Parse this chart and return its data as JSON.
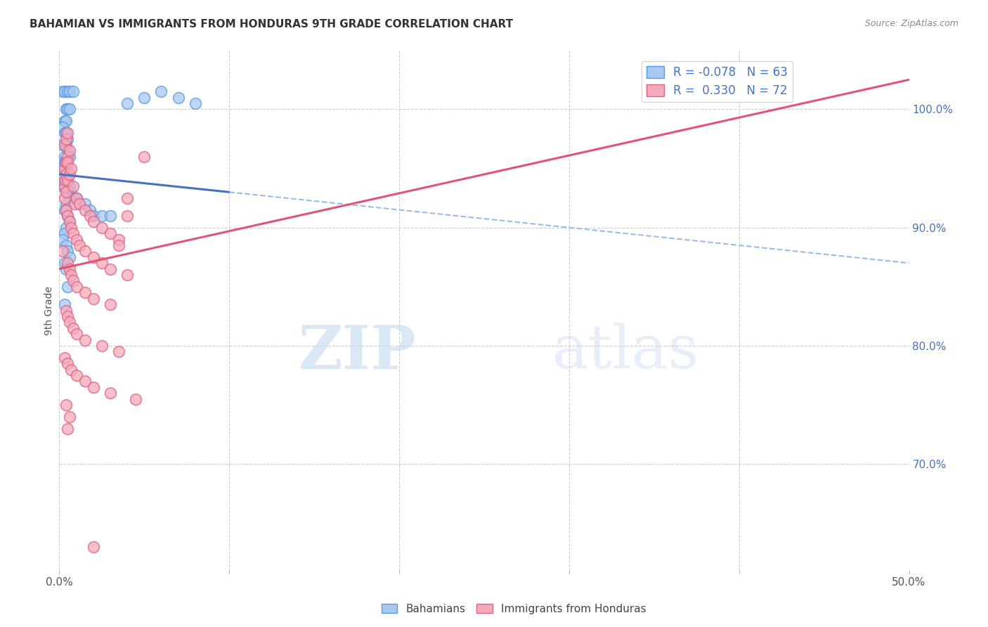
{
  "title": "BAHAMIAN VS IMMIGRANTS FROM HONDURAS 9TH GRADE CORRELATION CHART",
  "source": "Source: ZipAtlas.com",
  "ylabel": "9th Grade",
  "right_yticks": [
    70.0,
    80.0,
    90.0,
    100.0
  ],
  "xlim": [
    0.0,
    50.0
  ],
  "ylim": [
    61.0,
    105.0
  ],
  "legend_blue_r": "R = -0.078",
  "legend_blue_n": "N = 63",
  "legend_pink_r": "R =  0.330",
  "legend_pink_n": "N = 72",
  "blue_fill": "#A8C8F0",
  "blue_edge": "#5599DD",
  "pink_fill": "#F5AABB",
  "pink_edge": "#E06080",
  "blue_line_color": "#4472C4",
  "pink_line_color": "#E05575",
  "dashed_line_color": "#99BBE8",
  "title_color": "#333333",
  "source_color": "#888888",
  "right_axis_color": "#4472C4",
  "grid_color": "#CCCCCC",
  "background_color": "#FFFFFF",
  "blue_line_x0": 0.0,
  "blue_line_y0": 94.5,
  "blue_line_x1": 10.0,
  "blue_line_y1": 93.0,
  "blue_dash_x0": 10.0,
  "blue_dash_y0": 93.0,
  "blue_dash_x1": 50.0,
  "blue_dash_y1": 87.0,
  "pink_line_x0": 0.0,
  "pink_line_y0": 86.5,
  "pink_line_x1": 50.0,
  "pink_line_y1": 102.5,
  "blue_scatter_x": [
    0.2,
    0.3,
    0.5,
    0.6,
    0.8,
    0.4,
    0.5,
    0.6,
    0.3,
    0.4,
    0.2,
    0.3,
    0.4,
    0.5,
    0.3,
    0.2,
    0.4,
    0.5,
    0.6,
    0.3,
    0.2,
    0.3,
    0.4,
    0.2,
    0.3,
    0.5,
    0.4,
    0.3,
    0.2,
    0.6,
    0.5,
    0.7,
    0.8,
    1.0,
    1.2,
    1.5,
    1.8,
    2.0,
    2.5,
    3.0,
    4.0,
    5.0,
    6.0,
    7.0,
    8.0,
    0.4,
    0.3,
    0.5,
    0.6,
    0.4,
    0.3,
    0.5,
    0.6,
    0.4,
    0.3,
    0.2,
    0.4,
    0.5,
    0.6,
    0.3,
    0.4,
    0.5,
    0.3
  ],
  "blue_scatter_y": [
    101.5,
    101.5,
    101.5,
    101.5,
    101.5,
    100.0,
    100.0,
    100.0,
    99.0,
    99.0,
    98.5,
    98.0,
    98.0,
    97.5,
    97.0,
    97.0,
    97.0,
    96.5,
    96.0,
    96.0,
    95.5,
    95.5,
    95.5,
    95.0,
    95.0,
    95.0,
    94.5,
    94.0,
    93.5,
    93.5,
    93.0,
    93.0,
    92.5,
    92.5,
    92.0,
    92.0,
    91.5,
    91.0,
    91.0,
    91.0,
    100.5,
    101.0,
    101.5,
    101.0,
    100.5,
    94.0,
    93.5,
    93.0,
    92.5,
    92.0,
    91.5,
    91.0,
    90.5,
    90.0,
    89.5,
    89.0,
    88.5,
    88.0,
    87.5,
    87.0,
    86.5,
    85.0,
    83.5
  ],
  "pink_scatter_x": [
    0.2,
    0.3,
    0.4,
    0.3,
    0.4,
    0.5,
    0.3,
    0.4,
    0.5,
    0.3,
    0.4,
    0.5,
    0.6,
    0.3,
    0.4,
    0.5,
    0.6,
    0.7,
    0.8,
    0.9,
    1.0,
    1.2,
    1.5,
    1.8,
    2.0,
    2.5,
    3.0,
    3.5,
    4.0,
    5.0,
    0.4,
    0.5,
    0.6,
    0.7,
    0.8,
    1.0,
    1.2,
    1.5,
    2.0,
    2.5,
    3.0,
    4.0,
    0.5,
    0.6,
    0.7,
    0.8,
    1.0,
    1.5,
    2.0,
    3.0,
    0.4,
    0.5,
    0.6,
    0.8,
    1.0,
    1.5,
    2.5,
    3.5,
    0.3,
    0.5,
    0.7,
    1.0,
    1.5,
    2.0,
    3.0,
    4.5,
    0.4,
    0.6,
    4.0,
    0.5,
    2.0,
    3.5
  ],
  "pink_scatter_y": [
    88.0,
    93.5,
    95.5,
    97.0,
    97.5,
    98.0,
    95.0,
    95.5,
    96.0,
    94.0,
    94.5,
    95.5,
    96.5,
    92.5,
    93.0,
    94.0,
    94.5,
    95.0,
    93.5,
    92.0,
    92.5,
    92.0,
    91.5,
    91.0,
    90.5,
    90.0,
    89.5,
    89.0,
    91.0,
    96.0,
    91.5,
    91.0,
    90.5,
    90.0,
    89.5,
    89.0,
    88.5,
    88.0,
    87.5,
    87.0,
    86.5,
    86.0,
    87.0,
    86.5,
    86.0,
    85.5,
    85.0,
    84.5,
    84.0,
    83.5,
    83.0,
    82.5,
    82.0,
    81.5,
    81.0,
    80.5,
    80.0,
    79.5,
    79.0,
    78.5,
    78.0,
    77.5,
    77.0,
    76.5,
    76.0,
    75.5,
    75.0,
    74.0,
    92.5,
    73.0,
    63.0,
    88.5
  ]
}
